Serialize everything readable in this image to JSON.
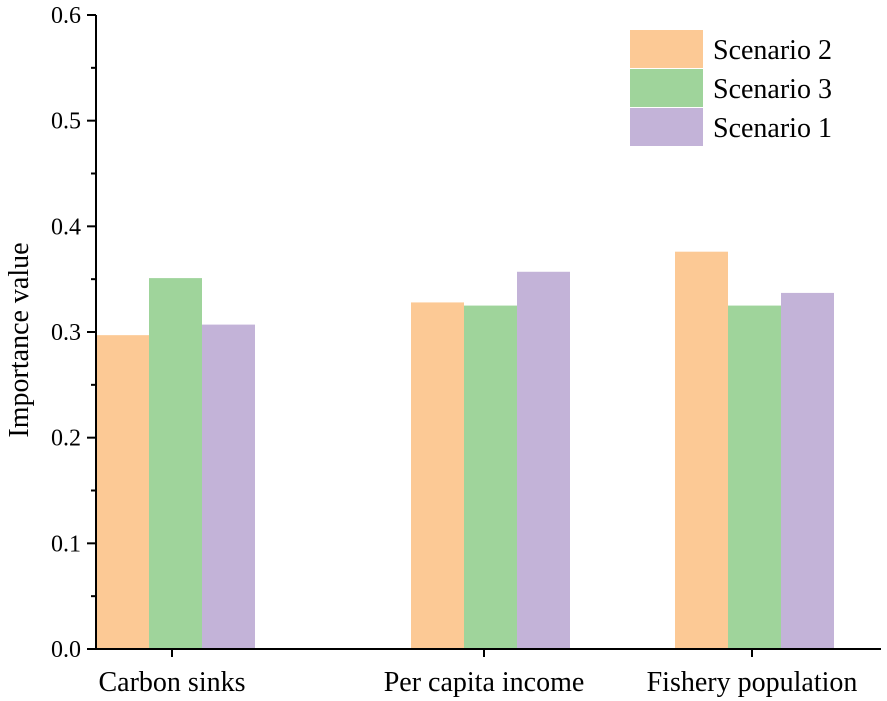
{
  "chart_data": {
    "type": "bar",
    "title": "",
    "xlabel": "",
    "ylabel": "Importance value",
    "ylim": [
      0.0,
      0.6
    ],
    "yticks": [
      "0.0",
      "0.1",
      "0.2",
      "0.3",
      "0.4",
      "0.5",
      "0.6"
    ],
    "categories": [
      "Carbon sinks",
      "Per capita income",
      "Fishery population"
    ],
    "series": [
      {
        "name": "Scenario 2",
        "color": "#FCC995",
        "values": [
          0.297,
          0.328,
          0.376
        ]
      },
      {
        "name": "Scenario 3",
        "color": "#9FD49B",
        "values": [
          0.351,
          0.325,
          0.325
        ]
      },
      {
        "name": "Scenario 1",
        "color": "#C3B3D8",
        "values": [
          0.307,
          0.357,
          0.337
        ]
      }
    ],
    "legend_position": "top-right",
    "grid": false
  }
}
